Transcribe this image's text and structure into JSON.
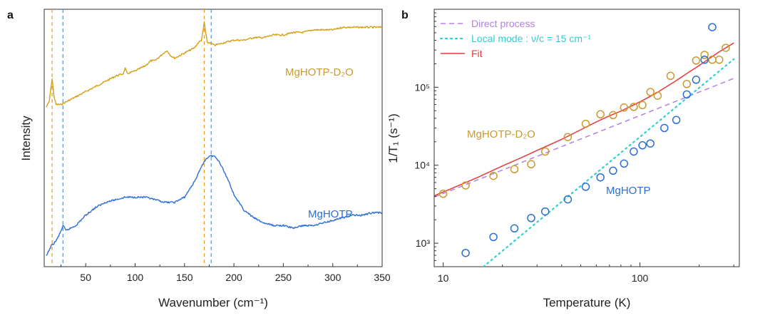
{
  "chart_data": [
    {
      "panel": "a",
      "type": "line",
      "xlabel": "Wavenumber (cm⁻¹)",
      "ylabel": "Intensity",
      "xlim": [
        8,
        350
      ],
      "ylim": [
        0,
        100
      ],
      "xticks": [
        50,
        100,
        150,
        200,
        250,
        300,
        350
      ],
      "yticks_shown": false,
      "vlines": [
        {
          "x": 16,
          "color": "#e8a030",
          "style": "dashed"
        },
        {
          "x": 27,
          "color": "#5b9be0",
          "style": "dashed"
        },
        {
          "x": 170,
          "color": "#e8a030",
          "style": "dashed"
        },
        {
          "x": 177,
          "color": "#5b9be0",
          "style": "dashed"
        }
      ],
      "series": [
        {
          "name": "MgHOTP-D₂O",
          "color": "#d4a017",
          "x": [
            10,
            13,
            16,
            18,
            20,
            25,
            30,
            40,
            50,
            60,
            70,
            80,
            88,
            90,
            92,
            100,
            110,
            116,
            120,
            126,
            132,
            136,
            140,
            150,
            160,
            164,
            167,
            169,
            170,
            171,
            173,
            176,
            180,
            190,
            200,
            210,
            220,
            230,
            240,
            250,
            260,
            270,
            280,
            290,
            300,
            310,
            320,
            330,
            340,
            350
          ],
          "y": [
            62,
            64,
            73,
            66,
            63,
            63,
            64,
            66,
            68,
            70,
            72,
            74,
            75,
            77,
            75,
            76,
            78,
            80,
            80,
            82,
            84,
            82,
            81,
            83,
            85,
            87,
            88,
            92,
            95,
            92,
            87,
            87,
            86,
            87,
            88,
            88,
            89,
            89,
            90,
            90,
            91,
            91,
            92,
            92,
            92,
            93,
            93,
            93,
            93,
            93
          ]
        },
        {
          "name": "MgHOTP",
          "color": "#2a6fd6",
          "x": [
            10,
            15,
            20,
            24,
            27,
            30,
            35,
            40,
            50,
            60,
            70,
            80,
            90,
            100,
            110,
            120,
            130,
            140,
            150,
            160,
            165,
            170,
            175,
            180,
            185,
            190,
            195,
            200,
            210,
            220,
            230,
            240,
            250,
            260,
            270,
            280,
            290,
            300,
            310,
            320,
            330,
            340,
            350
          ],
          "y": [
            4,
            8,
            10,
            13,
            16,
            14,
            15,
            16,
            20,
            23,
            25,
            26,
            27,
            27,
            27,
            26,
            25,
            25,
            27,
            33,
            37,
            41,
            43,
            43,
            41,
            37,
            33,
            28,
            22,
            19,
            17,
            16,
            16,
            15,
            16,
            16,
            17,
            18,
            19,
            20,
            20,
            21,
            21
          ]
        }
      ],
      "annotations": [
        "MgHOTP-D₂O",
        "MgHOTP"
      ]
    },
    {
      "panel": "b",
      "type": "scatter",
      "xscale": "log",
      "yscale": "log",
      "xlabel": "Temperature (K)",
      "ylabel": "1/T₁ (s⁻¹)",
      "xlim": [
        9,
        320
      ],
      "ylim": [
        500,
        1000000
      ],
      "xtick_values": [
        10,
        100
      ],
      "xtick_labels": [
        "10",
        "100"
      ],
      "ytick_values": [
        1000,
        10000,
        100000
      ],
      "ytick_labels": [
        "10³",
        "10⁴",
        "10⁵"
      ],
      "legend": {
        "position": "top-left",
        "entries": [
          {
            "label": "Direct process",
            "color": "#b57fe0",
            "style": "dashed"
          },
          {
            "label": "Local mode : ν/c = 15 cm⁻¹",
            "color": "#2ecfcf",
            "style": "dotted"
          },
          {
            "label": "Fit",
            "color": "#e8393c",
            "style": "solid"
          }
        ]
      },
      "series": [
        {
          "name": "MgHOTP-D₂O",
          "color": "#c99a2e",
          "marker": "circle-open",
          "x": [
            10,
            13,
            18,
            23,
            28,
            33,
            43,
            53,
            63,
            73,
            83,
            93,
            103,
            113,
            123,
            143,
            173,
            193,
            213,
            233,
            253,
            273
          ],
          "y": [
            4300,
            5500,
            7300,
            8900,
            10300,
            15000,
            23000,
            34000,
            45000,
            44000,
            55000,
            56000,
            59000,
            87000,
            78000,
            140000,
            110000,
            220000,
            260000,
            225000,
            225000,
            320000
          ]
        },
        {
          "name": "MgHOTP",
          "color": "#2a6fd6",
          "marker": "circle-open",
          "x": [
            13,
            18,
            23,
            28,
            33,
            43,
            53,
            63,
            73,
            83,
            93,
            103,
            113,
            133,
            153,
            173,
            193,
            213,
            233
          ],
          "y": [
            750,
            1200,
            1550,
            2100,
            2550,
            3650,
            5300,
            7000,
            8500,
            10500,
            15000,
            18000,
            19000,
            30000,
            38000,
            81000,
            125000,
            225000,
            590000
          ]
        }
      ],
      "lines": [
        {
          "name": "Direct process",
          "color": "#b57fe0",
          "x": [
            9,
            300
          ],
          "y": [
            3900,
            130000
          ]
        },
        {
          "name": "Local mode",
          "color": "#2ecfcf",
          "x": [
            16,
            300
          ],
          "y": [
            500,
            230000
          ]
        },
        {
          "name": "Fit",
          "color": "#e8393c",
          "x": [
            9,
            12,
            15,
            20,
            25,
            30,
            40,
            50,
            60,
            70,
            80,
            100,
            120,
            150,
            180,
            200,
            250,
            300
          ],
          "y": [
            4050,
            5500,
            7000,
            9800,
            12500,
            15500,
            21500,
            28500,
            36000,
            43000,
            49500,
            65000,
            83000,
            118000,
            160000,
            190000,
            280000,
            370000
          ]
        }
      ],
      "annotations": [
        "MgHOTP-D₂O",
        "MgHOTP"
      ]
    }
  ]
}
